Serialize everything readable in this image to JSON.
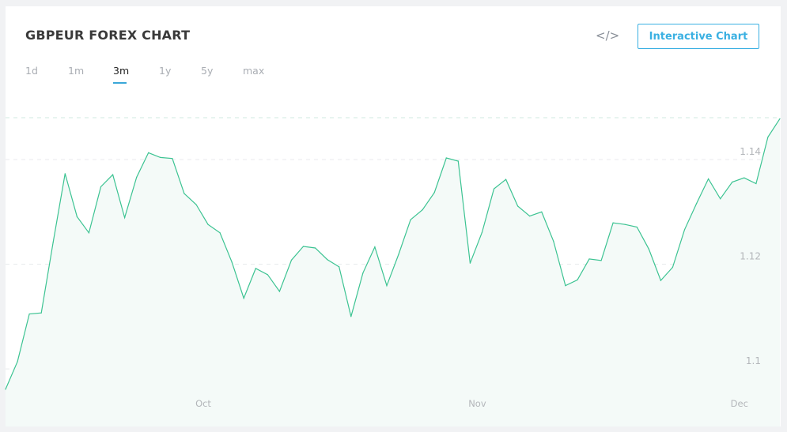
{
  "header": {
    "title": "GBPEUR FOREX CHART",
    "embed_icon": "code-icon",
    "interactive_button": "Interactive Chart"
  },
  "tabs": [
    {
      "label": "1d",
      "active": false
    },
    {
      "label": "1m",
      "active": false
    },
    {
      "label": "3m",
      "active": true
    },
    {
      "label": "1y",
      "active": false
    },
    {
      "label": "5y",
      "active": false
    },
    {
      "label": "max",
      "active": false
    }
  ],
  "colors": {
    "line": "#3cc392",
    "fill": "#f4faf8",
    "accent": "#3ab0e2"
  },
  "chart_data": {
    "type": "area",
    "title": "",
    "xlabel": "",
    "ylabel": "",
    "ylim": [
      1.089,
      1.148
    ],
    "grid": true,
    "y_ticks": [
      {
        "label": "1.14",
        "value": 1.14
      },
      {
        "label": "1.12",
        "value": 1.12
      },
      {
        "label": "1.1",
        "value": 1.1
      }
    ],
    "x_ticks": [
      {
        "label": "Oct",
        "index": 16.6
      },
      {
        "label": "Nov",
        "index": 39.6
      },
      {
        "label": "Dec",
        "index": 61.6
      }
    ],
    "values": [
      1.0961,
      1.1014,
      1.1105,
      1.1107,
      1.1242,
      1.1373,
      1.1291,
      1.126,
      1.1348,
      1.1371,
      1.1289,
      1.1366,
      1.1413,
      1.1404,
      1.1402,
      1.1335,
      1.1314,
      1.1276,
      1.126,
      1.1204,
      1.1135,
      1.1192,
      1.118,
      1.1148,
      1.1208,
      1.1234,
      1.1231,
      1.1209,
      1.1195,
      1.11,
      1.1183,
      1.1233,
      1.1159,
      1.1219,
      1.1285,
      1.1304,
      1.1337,
      1.1403,
      1.1397,
      1.1202,
      1.1261,
      1.1344,
      1.1362,
      1.1311,
      1.1292,
      1.13,
      1.1244,
      1.1159,
      1.117,
      1.121,
      1.1207,
      1.1279,
      1.1276,
      1.1271,
      1.1229,
      1.1169,
      1.1194,
      1.1266,
      1.1316,
      1.1363,
      1.1325,
      1.1357,
      1.1365,
      1.1354,
      1.1443,
      1.1478
    ]
  }
}
